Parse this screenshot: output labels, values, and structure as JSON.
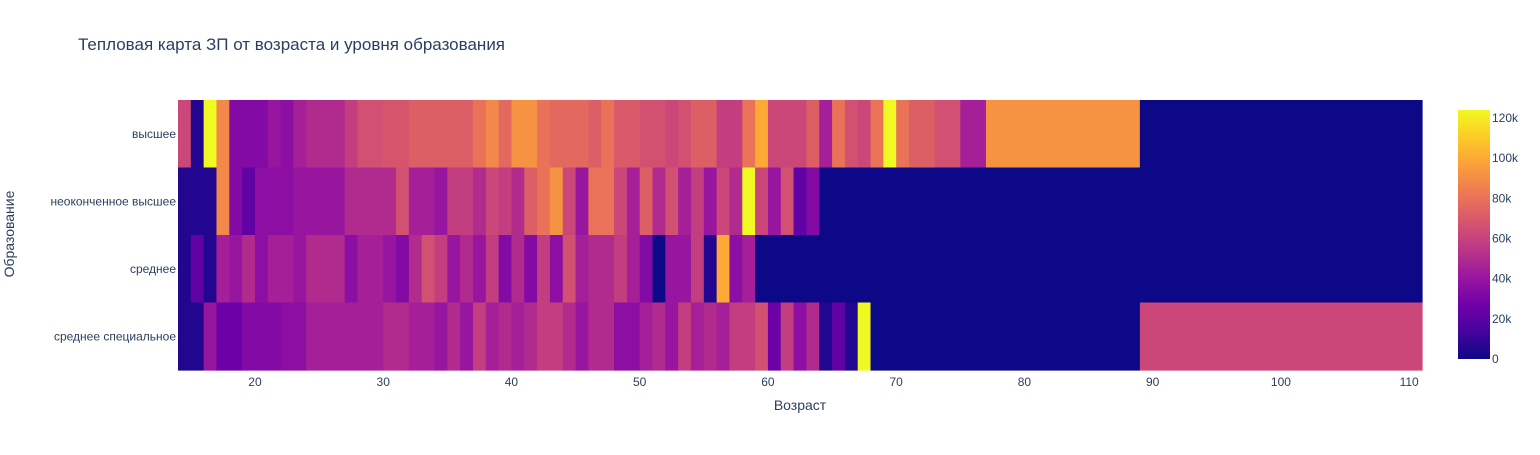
{
  "chart_data": {
    "type": "heatmap",
    "title": "Тепловая карта ЗП от возраста и уровня образования",
    "xlabel": "Возраст",
    "ylabel": "Образование",
    "x_min": 14,
    "x_max": 111,
    "x_ticks": [
      20,
      30,
      40,
      50,
      60,
      70,
      80,
      90,
      100,
      110
    ],
    "categories": [
      "высшее",
      "неоконченное высшее",
      "среднее",
      "среднее специальное"
    ],
    "colorscale": "plasma",
    "colorbar": {
      "min": 0,
      "max": 124000,
      "ticks": [
        0,
        20000,
        40000,
        60000,
        80000,
        100000,
        120000
      ],
      "tick_labels": [
        "0",
        "20k",
        "40k",
        "60k",
        "80k",
        "100k",
        "120k"
      ]
    },
    "series": [
      {
        "name": "высшее",
        "segments": [
          [
            14,
            15,
            62000
          ],
          [
            15,
            16,
            5000
          ],
          [
            16,
            17,
            124000
          ],
          [
            17,
            18,
            88000
          ],
          [
            18,
            21,
            33000
          ],
          [
            21,
            22,
            40000
          ],
          [
            22,
            23,
            36000
          ],
          [
            23,
            24,
            45000
          ],
          [
            24,
            27,
            50000
          ],
          [
            27,
            28,
            58000
          ],
          [
            28,
            30,
            66000
          ],
          [
            30,
            32,
            68000
          ],
          [
            32,
            37,
            72000
          ],
          [
            37,
            38,
            80000
          ],
          [
            38,
            39,
            88000
          ],
          [
            39,
            40,
            76000
          ],
          [
            40,
            42,
            92000
          ],
          [
            42,
            43,
            80000
          ],
          [
            43,
            46,
            76000
          ],
          [
            46,
            47,
            72000
          ],
          [
            47,
            48,
            80000
          ],
          [
            48,
            50,
            70000
          ],
          [
            50,
            52,
            66000
          ],
          [
            52,
            53,
            62000
          ],
          [
            53,
            54,
            66000
          ],
          [
            54,
            56,
            72000
          ],
          [
            56,
            58,
            58000
          ],
          [
            58,
            59,
            80000
          ],
          [
            59,
            60,
            100000
          ],
          [
            60,
            63,
            62000
          ],
          [
            63,
            64,
            72000
          ],
          [
            64,
            65,
            45000
          ],
          [
            65,
            66,
            80000
          ],
          [
            66,
            67,
            66000
          ],
          [
            67,
            68,
            62000
          ],
          [
            68,
            69,
            80000
          ],
          [
            69,
            70,
            124000
          ],
          [
            70,
            71,
            80000
          ],
          [
            71,
            73,
            72000
          ],
          [
            73,
            75,
            66000
          ],
          [
            75,
            77,
            45000
          ],
          [
            77,
            89,
            92000
          ],
          [
            89,
            111,
            0
          ]
        ]
      },
      {
        "name": "неоконченное высшее",
        "segments": [
          [
            14,
            17,
            5000
          ],
          [
            17,
            18,
            88000
          ],
          [
            18,
            19,
            33000
          ],
          [
            19,
            20,
            22000
          ],
          [
            20,
            23,
            36000
          ],
          [
            23,
            27,
            40000
          ],
          [
            27,
            31,
            50000
          ],
          [
            31,
            32,
            66000
          ],
          [
            32,
            34,
            45000
          ],
          [
            34,
            35,
            40000
          ],
          [
            35,
            37,
            58000
          ],
          [
            37,
            38,
            50000
          ],
          [
            38,
            39,
            62000
          ],
          [
            39,
            40,
            58000
          ],
          [
            40,
            41,
            50000
          ],
          [
            41,
            42,
            72000
          ],
          [
            42,
            43,
            80000
          ],
          [
            43,
            44,
            92000
          ],
          [
            44,
            45,
            62000
          ],
          [
            45,
            46,
            40000
          ],
          [
            46,
            48,
            80000
          ],
          [
            48,
            49,
            62000
          ],
          [
            49,
            50,
            45000
          ],
          [
            50,
            51,
            72000
          ],
          [
            51,
            52,
            50000
          ],
          [
            52,
            53,
            66000
          ],
          [
            53,
            54,
            45000
          ],
          [
            54,
            55,
            58000
          ],
          [
            55,
            56,
            40000
          ],
          [
            56,
            57,
            62000
          ],
          [
            57,
            58,
            50000
          ],
          [
            58,
            59,
            124000
          ],
          [
            59,
            60,
            62000
          ],
          [
            60,
            61,
            40000
          ],
          [
            61,
            62,
            66000
          ],
          [
            62,
            63,
            22000
          ],
          [
            63,
            64,
            33000
          ],
          [
            64,
            111,
            0
          ]
        ]
      },
      {
        "name": "среднее",
        "segments": [
          [
            14,
            15,
            5000
          ],
          [
            15,
            16,
            22000
          ],
          [
            16,
            17,
            5000
          ],
          [
            17,
            18,
            45000
          ],
          [
            18,
            19,
            40000
          ],
          [
            19,
            20,
            50000
          ],
          [
            20,
            21,
            36000
          ],
          [
            21,
            23,
            45000
          ],
          [
            23,
            24,
            40000
          ],
          [
            24,
            27,
            50000
          ],
          [
            27,
            28,
            36000
          ],
          [
            28,
            30,
            45000
          ],
          [
            30,
            31,
            40000
          ],
          [
            31,
            32,
            33000
          ],
          [
            32,
            33,
            50000
          ],
          [
            33,
            34,
            66000
          ],
          [
            34,
            35,
            58000
          ],
          [
            35,
            36,
            40000
          ],
          [
            36,
            37,
            50000
          ],
          [
            37,
            38,
            40000
          ],
          [
            38,
            39,
            58000
          ],
          [
            39,
            40,
            33000
          ],
          [
            40,
            41,
            50000
          ],
          [
            41,
            42,
            33000
          ],
          [
            42,
            43,
            58000
          ],
          [
            43,
            44,
            36000
          ],
          [
            44,
            45,
            66000
          ],
          [
            45,
            46,
            45000
          ],
          [
            46,
            48,
            50000
          ],
          [
            48,
            49,
            58000
          ],
          [
            49,
            50,
            45000
          ],
          [
            50,
            51,
            33000
          ],
          [
            51,
            52,
            0
          ],
          [
            52,
            54,
            40000
          ],
          [
            54,
            55,
            58000
          ],
          [
            55,
            56,
            5000
          ],
          [
            56,
            57,
            100000
          ],
          [
            57,
            58,
            36000
          ],
          [
            58,
            59,
            45000
          ],
          [
            59,
            111,
            0
          ]
        ]
      },
      {
        "name": "среднее специальное",
        "segments": [
          [
            14,
            16,
            5000
          ],
          [
            16,
            17,
            40000
          ],
          [
            17,
            19,
            26000
          ],
          [
            19,
            22,
            33000
          ],
          [
            22,
            24,
            36000
          ],
          [
            24,
            30,
            45000
          ],
          [
            30,
            32,
            50000
          ],
          [
            32,
            34,
            45000
          ],
          [
            34,
            35,
            40000
          ],
          [
            35,
            36,
            50000
          ],
          [
            36,
            37,
            40000
          ],
          [
            37,
            38,
            58000
          ],
          [
            38,
            39,
            45000
          ],
          [
            39,
            40,
            50000
          ],
          [
            40,
            41,
            45000
          ],
          [
            41,
            42,
            50000
          ],
          [
            42,
            44,
            58000
          ],
          [
            44,
            45,
            50000
          ],
          [
            45,
            46,
            40000
          ],
          [
            46,
            48,
            50000
          ],
          [
            48,
            50,
            36000
          ],
          [
            50,
            51,
            45000
          ],
          [
            51,
            52,
            50000
          ],
          [
            52,
            53,
            40000
          ],
          [
            53,
            54,
            58000
          ],
          [
            54,
            55,
            45000
          ],
          [
            55,
            56,
            50000
          ],
          [
            56,
            57,
            45000
          ],
          [
            57,
            59,
            58000
          ],
          [
            59,
            60,
            66000
          ],
          [
            60,
            61,
            26000
          ],
          [
            61,
            62,
            58000
          ],
          [
            62,
            63,
            36000
          ],
          [
            63,
            64,
            50000
          ],
          [
            64,
            65,
            5000
          ],
          [
            65,
            66,
            22000
          ],
          [
            66,
            67,
            5000
          ],
          [
            67,
            68,
            124000
          ],
          [
            68,
            89,
            0
          ],
          [
            89,
            111,
            62000
          ]
        ]
      }
    ]
  }
}
